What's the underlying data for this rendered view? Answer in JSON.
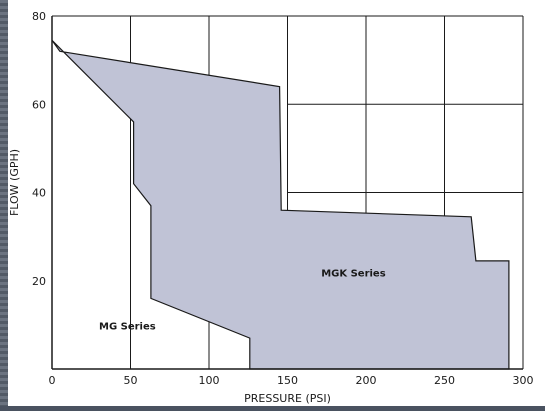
{
  "chart_data": {
    "type": "area",
    "xlabel": "PRESSURE (PSI)",
    "ylabel": "FLOW (GPH)",
    "xlim": [
      0,
      300
    ],
    "ylim": [
      0,
      80
    ],
    "x_ticks": [
      0,
      50,
      100,
      150,
      200,
      250,
      300
    ],
    "y_ticks": [
      20,
      40,
      60,
      80
    ],
    "grid": true,
    "grid_x_lines": [
      50,
      100,
      150,
      200,
      250,
      300
    ],
    "grid_y_lines_right": [
      [
        150,
        300,
        40
      ],
      [
        150,
        300,
        60
      ]
    ],
    "series": [
      {
        "name": "MGK Series",
        "fill": "#c0c3d6",
        "stroke": "#1a1a1a",
        "points": [
          [
            5,
            72
          ],
          [
            145,
            64
          ],
          [
            146,
            36
          ],
          [
            267,
            34.5
          ],
          [
            270,
            24.5
          ],
          [
            291,
            24.5
          ],
          [
            291,
            0
          ],
          [
            126,
            0
          ],
          [
            126,
            7
          ],
          [
            63,
            16
          ],
          [
            63,
            37
          ],
          [
            52,
            42
          ],
          [
            52,
            56
          ],
          [
            0,
            74.5
          ]
        ]
      }
    ],
    "annotations": [
      {
        "text": "MGK Series",
        "x": 192,
        "y": 21
      },
      {
        "text": "MG Series",
        "x": 48,
        "y": 9
      }
    ]
  }
}
